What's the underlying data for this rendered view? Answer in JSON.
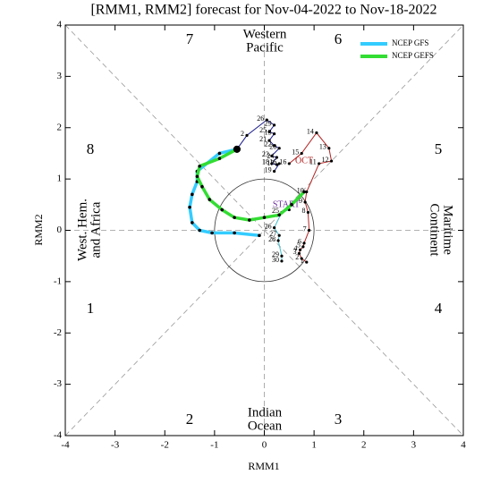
{
  "chart_data": {
    "type": "phase",
    "title": "[RMM1, RMM2] forecast for Nov-04-2022 to Nov-18-2022",
    "xlabel": "RMM1",
    "ylabel": "RMM2",
    "xlim": [
      -4,
      4
    ],
    "ylim": [
      -4,
      4
    ],
    "xticks": [
      -4,
      -3,
      -2,
      -1,
      0,
      1,
      2,
      3,
      4
    ],
    "yticks": [
      -4,
      -3,
      -2,
      -1,
      0,
      1,
      2,
      3,
      4
    ],
    "legend": "upper right",
    "phase_labels": [
      "1",
      "2",
      "3",
      "4",
      "5",
      "6",
      "7",
      "8"
    ],
    "regions": {
      "western_pacific": [
        "Western",
        "Pacific"
      ],
      "indian_ocean": [
        "Indian",
        "Ocean"
      ],
      "west_hem": [
        "West. Hem.",
        "and Africa"
      ],
      "maritime": [
        "Maritime",
        "Continent"
      ]
    },
    "annotations": {
      "start": "START",
      "oct": "OCT"
    },
    "series": [
      {
        "name": "NCEP GFS",
        "color": "#33ccff",
        "x": [
          -0.55,
          -0.9,
          -1.35,
          -1.35,
          -1.45,
          -1.5,
          -1.45,
          -1.3,
          -1.05,
          -0.6,
          -0.1
        ],
        "y": [
          1.58,
          1.5,
          1.15,
          0.95,
          0.7,
          0.45,
          0.15,
          0.0,
          -0.05,
          -0.05,
          -0.1
        ]
      },
      {
        "name": "NCEP GEFS",
        "color": "#33dd33",
        "x": [
          -0.55,
          -0.9,
          -1.3,
          -1.35,
          -1.25,
          -1.1,
          -0.85,
          -0.6,
          -0.3,
          0.0,
          0.3,
          0.55,
          0.8
        ],
        "y": [
          1.58,
          1.4,
          1.25,
          1.05,
          0.85,
          0.6,
          0.4,
          0.25,
          0.2,
          0.25,
          0.3,
          0.5,
          0.75
        ]
      }
    ],
    "observed": [
      {
        "color": "#1c1c8c",
        "x": [
          -0.55,
          -0.35,
          0.05,
          0.2,
          0.1,
          0.2,
          0.1,
          0.2,
          0.3,
          0.15,
          0.25,
          0.15,
          0.25,
          0.3,
          0.2
        ],
        "y": [
          1.58,
          1.85,
          2.15,
          2.05,
          1.92,
          1.88,
          1.75,
          1.65,
          1.6,
          1.45,
          1.42,
          1.3,
          1.28,
          1.3,
          1.15
        ],
        "labels": [
          null,
          "2",
          "26",
          "29",
          "25",
          "13",
          "21",
          "22",
          "20",
          "23",
          "24",
          "18",
          "17",
          "16",
          "19"
        ]
      },
      {
        "color": "#40c0d0",
        "x": [
          0.5,
          0.35,
          0.2,
          0.3,
          0.28,
          0.35,
          0.35
        ],
        "y": [
          0.4,
          0.35,
          0.05,
          -0.1,
          -0.2,
          -0.5,
          -0.6
        ],
        "labels": [
          null,
          "25",
          "26",
          "27",
          "28",
          "29",
          "30"
        ]
      },
      {
        "color": "#b22222",
        "x": [
          0.85,
          0.75,
          0.7,
          0.72,
          0.78,
          0.8,
          0.9,
          0.88,
          0.82,
          0.85,
          1.1,
          1.35,
          1.3,
          1.05,
          0.75,
          0.5
        ],
        "y": [
          -0.62,
          -0.55,
          -0.45,
          -0.38,
          -0.32,
          -0.25,
          0.0,
          0.35,
          0.55,
          0.75,
          1.3,
          1.35,
          1.6,
          1.9,
          1.5,
          1.3
        ],
        "labels": [
          "1",
          "2",
          "3",
          "4",
          "5",
          "6",
          "7",
          "8",
          "9",
          "10",
          "11",
          "12",
          "13",
          "14",
          "15",
          "16"
        ]
      }
    ]
  }
}
